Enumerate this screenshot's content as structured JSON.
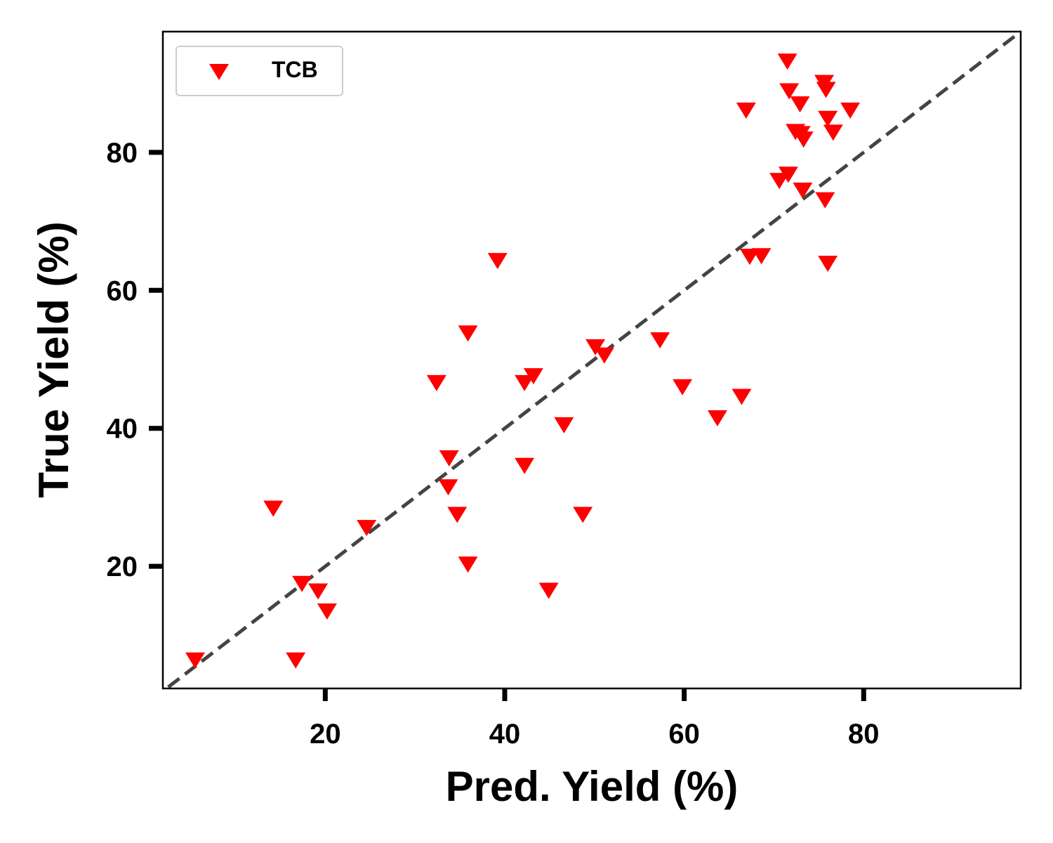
{
  "chart_data": {
    "type": "scatter",
    "xlabel": "Pred. Yield (%)",
    "ylabel": "True Yield (%)",
    "xlim": [
      1.9,
      97.5
    ],
    "ylim": [
      2.3,
      97.5
    ],
    "xticks": [
      20,
      40,
      60,
      80
    ],
    "yticks": [
      20,
      40,
      60,
      80
    ],
    "grid": false,
    "legend_position": "top-left",
    "reference_line": {
      "style": "dashed",
      "color": "#444444",
      "from": [
        2.5,
        2.5
      ],
      "to": [
        97.5,
        97.5
      ]
    },
    "series": [
      {
        "name": "TCB",
        "color": "#ff0000",
        "marker": "triangle-down",
        "points": [
          [
            5.5,
            6.4
          ],
          [
            14.2,
            28.4
          ],
          [
            16.7,
            6.4
          ],
          [
            17.4,
            17.5
          ],
          [
            19.2,
            16.4
          ],
          [
            20.2,
            13.5
          ],
          [
            24.6,
            25.6
          ],
          [
            32.4,
            46.6
          ],
          [
            33.8,
            35.7
          ],
          [
            33.7,
            31.5
          ],
          [
            34.7,
            27.5
          ],
          [
            35.9,
            53.8
          ],
          [
            35.9,
            20.3
          ],
          [
            39.2,
            64.3
          ],
          [
            42.2,
            34.6
          ],
          [
            42.2,
            46.6
          ],
          [
            43.2,
            47.6
          ],
          [
            44.9,
            16.5
          ],
          [
            46.6,
            40.5
          ],
          [
            48.7,
            27.5
          ],
          [
            50.1,
            51.8
          ],
          [
            51.1,
            50.6
          ],
          [
            57.3,
            52.8
          ],
          [
            59.8,
            46.0
          ],
          [
            63.7,
            41.5
          ],
          [
            66.4,
            44.6
          ],
          [
            66.9,
            86.1
          ],
          [
            67.3,
            64.9
          ],
          [
            68.6,
            65.0
          ],
          [
            70.6,
            75.9
          ],
          [
            71.6,
            76.8
          ],
          [
            71.5,
            93.2
          ],
          [
            71.7,
            88.9
          ],
          [
            72.4,
            83.0
          ],
          [
            73.0,
            82.7
          ],
          [
            72.9,
            87.0
          ],
          [
            73.3,
            81.9
          ],
          [
            73.2,
            74.5
          ],
          [
            75.6,
            90.1
          ],
          [
            75.8,
            89.1
          ],
          [
            76.0,
            84.9
          ],
          [
            75.7,
            73.1
          ],
          [
            76.0,
            63.9
          ],
          [
            76.6,
            82.9
          ],
          [
            78.5,
            86.1
          ]
        ]
      }
    ]
  }
}
